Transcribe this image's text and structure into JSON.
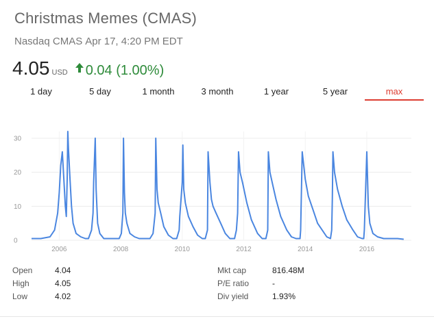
{
  "header": {
    "title": "Christmas Memes (CMAS)",
    "exchange": "Nasdaq CMAS",
    "timestamp": "Apr 17, 4:20 PM EDT"
  },
  "quote": {
    "price": "4.05",
    "currency": "USD",
    "change": "0.04 (1.00%)",
    "direction": "up",
    "change_color": "#2e8b3a"
  },
  "tabs": [
    {
      "label": "1 day"
    },
    {
      "label": "5 day"
    },
    {
      "label": "1 month"
    },
    {
      "label": "3 month"
    },
    {
      "label": "1 year"
    },
    {
      "label": "5 year"
    },
    {
      "label": "max",
      "active": true
    }
  ],
  "accent_color": "#dd3c30",
  "chart_data": {
    "type": "line",
    "title": "",
    "xlabel": "",
    "ylabel": "",
    "ylim": [
      0,
      32
    ],
    "xlim": [
      2005.1,
      2017.45
    ],
    "yticks": [
      0,
      10,
      20,
      30
    ],
    "xticks": [
      2006,
      2008,
      2010,
      2012,
      2014,
      2016
    ],
    "grid": true,
    "line_color": "#4a86e0",
    "series": [
      {
        "name": "",
        "x": [
          2005.1,
          2005.4,
          2005.7,
          2005.85,
          2005.95,
          2006.0,
          2006.05,
          2006.1,
          2006.15,
          2006.2,
          2006.23,
          2006.26,
          2006.28,
          2006.3,
          2006.35,
          2006.4,
          2006.45,
          2006.55,
          2006.7,
          2006.85,
          2006.95,
          2007.05,
          2007.1,
          2007.12,
          2007.15,
          2007.17,
          2007.2,
          2007.25,
          2007.32,
          2007.45,
          2007.6,
          2007.8,
          2007.95,
          2008.02,
          2008.07,
          2008.09,
          2008.12,
          2008.15,
          2008.2,
          2008.3,
          2008.45,
          2008.6,
          2008.75,
          2008.85,
          2008.95,
          2009.05,
          2009.12,
          2009.14,
          2009.18,
          2009.22,
          2009.3,
          2009.4,
          2009.55,
          2009.7,
          2009.82,
          2009.9,
          2009.92,
          2010.0,
          2010.02,
          2010.05,
          2010.1,
          2010.2,
          2010.35,
          2010.5,
          2010.65,
          2010.75,
          2010.82,
          2010.84,
          2010.9,
          2010.95,
          2011.0,
          2011.1,
          2011.25,
          2011.4,
          2011.55,
          2011.7,
          2011.76,
          2011.8,
          2011.83,
          2011.88,
          2011.96,
          2012.1,
          2012.25,
          2012.45,
          2012.6,
          2012.72,
          2012.78,
          2012.8,
          2012.85,
          2012.95,
          2013.05,
          2013.2,
          2013.4,
          2013.55,
          2013.7,
          2013.83,
          2013.85,
          2013.9,
          2014.0,
          2014.1,
          2014.25,
          2014.4,
          2014.55,
          2014.7,
          2014.82,
          2014.86,
          2014.88,
          2014.9,
          2014.95,
          2015.05,
          2015.2,
          2015.35,
          2015.55,
          2015.7,
          2015.85,
          2015.9,
          2015.92,
          2016.0,
          2016.05,
          2016.07,
          2016.1,
          2016.2,
          2016.35,
          2016.55,
          2016.8,
          2017.0,
          2017.2
        ],
        "y": [
          0.5,
          0.5,
          1,
          3,
          8,
          14,
          22,
          26,
          18,
          10,
          7,
          18,
          32,
          27,
          18,
          10,
          5,
          2,
          1,
          0.5,
          0.5,
          3,
          8,
          17,
          25,
          30,
          15,
          5,
          2,
          0.5,
          0.5,
          0.5,
          0.5,
          2,
          8,
          30,
          14,
          8,
          5,
          2,
          1,
          0.5,
          0.5,
          0.5,
          0.5,
          2,
          8,
          30,
          15,
          11,
          8,
          4,
          1.5,
          0.5,
          0.5,
          3,
          7,
          17,
          28,
          15,
          11,
          7,
          4,
          1.5,
          0.5,
          0.5,
          3,
          26,
          17,
          12,
          10,
          8,
          5,
          2,
          0.5,
          0.5,
          3,
          8,
          26,
          20,
          17,
          11,
          6,
          2,
          0.5,
          0.5,
          3,
          26,
          20,
          16,
          12,
          7,
          3,
          1,
          0.5,
          0.5,
          3,
          26,
          18,
          13,
          9,
          5,
          3,
          1,
          0.5,
          3,
          12,
          26,
          20,
          15,
          10,
          6,
          3,
          1,
          0.5,
          0.5,
          3,
          26,
          10,
          8,
          5,
          2,
          1,
          0.5,
          0.5,
          0.5,
          0.3
        ]
      }
    ]
  },
  "stats": {
    "left": [
      {
        "label": "Open",
        "value": "4.04"
      },
      {
        "label": "High",
        "value": "4.05"
      },
      {
        "label": "Low",
        "value": "4.02"
      }
    ],
    "right": [
      {
        "label": "Mkt cap",
        "value": "816.48M"
      },
      {
        "label": "P/E ratio",
        "value": "-"
      },
      {
        "label": "Div yield",
        "value": "1.93%"
      }
    ]
  }
}
